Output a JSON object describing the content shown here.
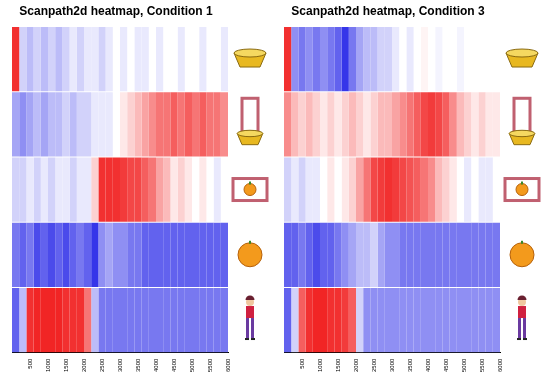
{
  "chart_data": [
    {
      "type": "heatmap",
      "title": "Scanpath2d heatmap, Condition 1",
      "xlim": [
        0,
        6000
      ],
      "xticks": [
        500,
        1000,
        1500,
        2000,
        2500,
        3000,
        3500,
        4000,
        4500,
        5000,
        5500,
        6000
      ],
      "bins": [
        0,
        200,
        400,
        600,
        800,
        1000,
        1200,
        1400,
        1600,
        1800,
        2000,
        2200,
        2400,
        2600,
        2800,
        3000,
        3200,
        3400,
        3600,
        3800,
        4000,
        4200,
        4400,
        4600,
        4800,
        5000,
        5200,
        5400,
        5600,
        5800,
        6000
      ],
      "categories": [
        null,
        null,
        null,
        null,
        null
      ],
      "zlim": [
        -1,
        1
      ],
      "grid": false,
      "tick_labels": "x",
      "cells": [
        [
          0.9,
          -0.2,
          -0.3,
          -0.2,
          -0.3,
          -0.2,
          -0.3,
          -0.2,
          -0.1,
          -0.2,
          -0.1,
          -0.1,
          -0.2,
          -0.1,
          0,
          -0.1,
          0,
          -0.1,
          -0.1,
          0,
          -0.1,
          0,
          0,
          -0.1,
          0,
          0,
          -0.1,
          0,
          0,
          -0.1
        ],
        [
          -0.4,
          -0.5,
          -0.4,
          -0.3,
          -0.4,
          -0.3,
          -0.3,
          -0.2,
          -0.3,
          -0.2,
          -0.2,
          -0.1,
          -0.1,
          -0.1,
          0,
          0.1,
          0.2,
          0.3,
          0.4,
          0.5,
          0.6,
          0.6,
          0.7,
          0.6,
          0.7,
          0.6,
          0.7,
          0.6,
          0.6,
          0.5
        ],
        [
          -0.2,
          -0.2,
          -0.1,
          -0.2,
          -0.1,
          -0.2,
          -0.1,
          -0.1,
          -0.2,
          -0.1,
          -0.1,
          0.2,
          0.9,
          0.9,
          0.9,
          0.85,
          0.8,
          0.8,
          0.7,
          0.6,
          0.4,
          0.3,
          0.1,
          0.2,
          0.1,
          0,
          0.1,
          0,
          -0.1,
          0
        ],
        [
          -0.6,
          -0.7,
          -0.6,
          -0.8,
          -0.7,
          -0.8,
          -0.7,
          -0.8,
          -0.7,
          -0.6,
          -0.7,
          -0.9,
          -0.5,
          -0.4,
          -0.5,
          -0.5,
          -0.6,
          -0.6,
          -0.7,
          -0.7,
          -0.7,
          -0.7,
          -0.7,
          -0.7,
          -0.7,
          -0.7,
          -0.7,
          -0.7,
          -0.7,
          -0.7
        ],
        [
          -0.7,
          -0.3,
          0.9,
          0.95,
          0.95,
          0.95,
          0.95,
          0.9,
          0.9,
          0.9,
          0.6,
          -0.3,
          -0.6,
          -0.6,
          -0.6,
          -0.6,
          -0.6,
          -0.6,
          -0.6,
          -0.6,
          -0.6,
          -0.6,
          -0.6,
          -0.6,
          -0.6,
          -0.6,
          -0.6,
          -0.6,
          -0.6,
          -0.6
        ]
      ]
    },
    {
      "type": "heatmap",
      "title": "Scanpath2d heatmap, Condition 3",
      "xlim": [
        0,
        6000
      ],
      "xticks": [
        500,
        1000,
        1500,
        2000,
        2500,
        3000,
        3500,
        4000,
        4500,
        5000,
        5500,
        6000
      ],
      "bins": [
        0,
        200,
        400,
        600,
        800,
        1000,
        1200,
        1400,
        1600,
        1800,
        2000,
        2200,
        2400,
        2600,
        2800,
        3000,
        3200,
        3400,
        3600,
        3800,
        4000,
        4200,
        4400,
        4600,
        4800,
        5000,
        5200,
        5400,
        5600,
        5800,
        6000
      ],
      "categories": [
        null,
        null,
        null,
        null,
        null
      ],
      "zlim": [
        -1,
        1
      ],
      "grid": false,
      "tick_labels": "x",
      "cells": [
        [
          0.9,
          -0.5,
          -0.6,
          -0.5,
          -0.6,
          -0.5,
          -0.6,
          -0.7,
          -0.9,
          -0.6,
          -0.4,
          -0.3,
          -0.3,
          -0.2,
          -0.2,
          -0.1,
          0,
          -0.1,
          0,
          0.05,
          0,
          -0.05,
          0,
          0,
          -0.05,
          0,
          0,
          0,
          0,
          0
        ],
        [
          0.5,
          0.3,
          0.2,
          0.3,
          0.2,
          0.1,
          0.2,
          0.1,
          0.2,
          0.3,
          0.2,
          0.1,
          0.2,
          0.3,
          0.3,
          0.4,
          0.5,
          0.6,
          0.7,
          0.8,
          0.85,
          0.8,
          0.7,
          0.5,
          0.3,
          0.2,
          0.1,
          0.2,
          0.1,
          0.1
        ],
        [
          -0.2,
          -0.1,
          -0.2,
          -0.1,
          -0.1,
          0,
          0.1,
          0,
          0.1,
          0.2,
          0.4,
          0.6,
          0.8,
          0.85,
          0.9,
          0.85,
          0.8,
          0.75,
          0.7,
          0.6,
          0.5,
          0.3,
          0.2,
          0.1,
          0,
          -0.1,
          0,
          -0.1,
          -0.1,
          0
        ],
        [
          -0.7,
          -0.7,
          -0.6,
          -0.7,
          -0.8,
          -0.7,
          -0.7,
          -0.6,
          -0.5,
          -0.4,
          -0.3,
          -0.3,
          -0.2,
          -0.4,
          -0.5,
          -0.5,
          -0.6,
          -0.6,
          -0.6,
          -0.6,
          -0.6,
          -0.6,
          -0.6,
          -0.6,
          -0.6,
          -0.6,
          -0.6,
          -0.6,
          -0.6,
          -0.6
        ],
        [
          -0.7,
          -0.2,
          0.7,
          0.9,
          0.95,
          0.95,
          0.9,
          0.9,
          0.85,
          0.7,
          -0.2,
          -0.5,
          -0.5,
          -0.5,
          -0.5,
          -0.5,
          -0.5,
          -0.5,
          -0.5,
          -0.5,
          -0.5,
          -0.5,
          -0.5,
          -0.5,
          -0.5,
          -0.5,
          -0.5,
          -0.5,
          -0.5,
          -0.5
        ]
      ]
    }
  ]
}
